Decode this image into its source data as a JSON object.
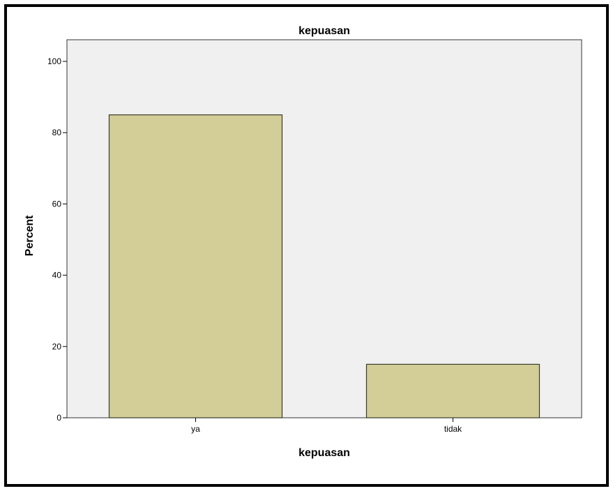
{
  "chart_data": {
    "type": "bar",
    "title": "kepuasan",
    "xlabel": "kepuasan",
    "ylabel": "Percent",
    "categories": [
      "ya",
      "tidak"
    ],
    "values": [
      85,
      15
    ],
    "ylim": [
      0,
      100
    ],
    "yticks": [
      "0",
      "20",
      "40",
      "60",
      "80",
      "100"
    ],
    "grid": false,
    "legend": "none",
    "colors": {
      "bar_fill": "#d3ce98",
      "bar_stroke": "#3a3a2a",
      "plot_background": "#f0f0f0",
      "frame": "#000000"
    }
  }
}
